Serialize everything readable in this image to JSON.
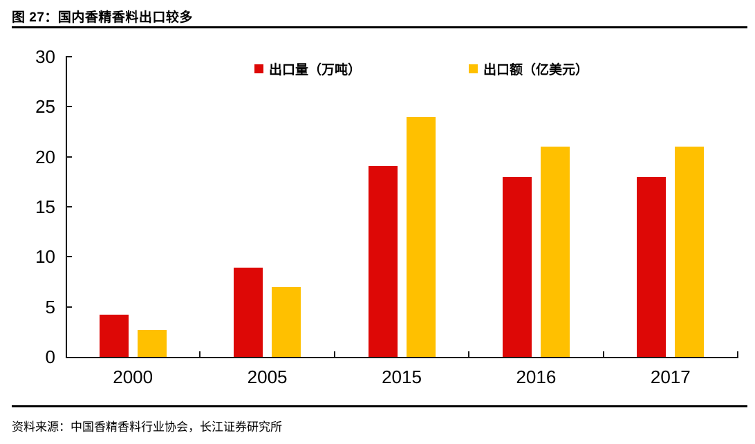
{
  "page": {
    "title": "图 27：国内香精香料出口较多",
    "source": "资料来源：中国香精香料行业协会，长江证券研究所"
  },
  "chart_data": {
    "type": "bar",
    "title": "图 27：国内香精香料出口较多",
    "categories": [
      "2000",
      "2005",
      "2015",
      "2016",
      "2017"
    ],
    "series": [
      {
        "name": "出口量（万吨）",
        "color": "#DD0806",
        "values": [
          4.2,
          8.9,
          19.1,
          18.0,
          18.0
        ]
      },
      {
        "name": "出口额（亿美元）",
        "color": "#FFC000",
        "values": [
          2.7,
          7.0,
          24.0,
          21.0,
          21.0
        ]
      }
    ],
    "xlabel": "",
    "ylabel": "",
    "ylim": [
      0,
      30
    ],
    "yticks": [
      0,
      5,
      10,
      15,
      20,
      25,
      30
    ],
    "grid": false,
    "legend_position": "top"
  }
}
